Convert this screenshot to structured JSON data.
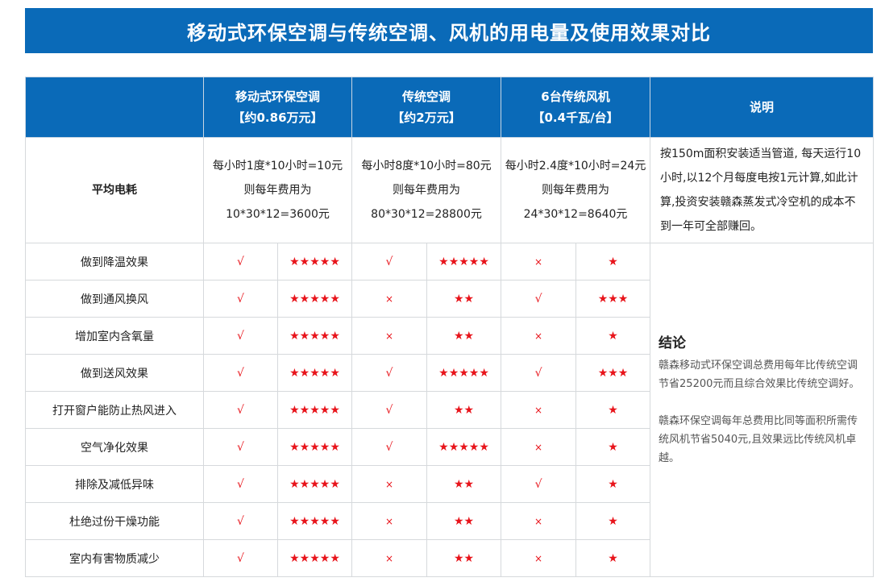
{
  "title": "移动式环保空调与传统空调、风机的用电量及使用效果对比",
  "colors": {
    "header_blue": "#0a6ab8",
    "mark_red": "#e8141b"
  },
  "headers": [
    {
      "name": "移动式环保空调",
      "price": "【约0.86万元】"
    },
    {
      "name": "传统空调",
      "price": "【约2万元】"
    },
    {
      "name": "6台传统风机",
      "price": "【0.4千瓦/台】"
    }
  ],
  "notes_header": "说明",
  "power": {
    "label": "平均电耗",
    "cells": [
      [
        "每小时1度*10小时=10元",
        "则每年费用为",
        "10*30*12=3600元"
      ],
      [
        "每小时8度*10小时=80元",
        "则每年费用为",
        "80*30*12=28800元"
      ],
      [
        "每小时2.4度*10小时=24元",
        "则每年费用为",
        "24*30*12=8640元"
      ]
    ],
    "note": "按150m面积安装适当管道, 每天运行10小时,以12个月每度电按1元计算,如此计算,投资安装赣森蒸发式冷空机的成本不到一年可全部赚回。"
  },
  "rows": [
    {
      "label": "做到降温效果",
      "marks": [
        "√",
        "★★★★★",
        "√",
        "★★★★★",
        "×",
        "★"
      ]
    },
    {
      "label": "做到通风换风",
      "marks": [
        "√",
        "★★★★★",
        "×",
        "★★",
        "√",
        "★★★"
      ]
    },
    {
      "label": "增加室内含氧量",
      "marks": [
        "√",
        "★★★★★",
        "×",
        "★★",
        "×",
        "★"
      ]
    },
    {
      "label": "做到送风效果",
      "marks": [
        "√",
        "★★★★★",
        "√",
        "★★★★★",
        "√",
        "★★★"
      ]
    },
    {
      "label": "打开窗户能防止热风进入",
      "marks": [
        "√",
        "★★★★★",
        "√",
        "★★",
        "×",
        "★"
      ]
    },
    {
      "label": "空气净化效果",
      "marks": [
        "√",
        "★★★★★",
        "√",
        "★★★★★",
        "×",
        "★"
      ]
    },
    {
      "label": "排除及减低异味",
      "marks": [
        "√",
        "★★★★★",
        "×",
        "★★",
        "√",
        "★"
      ]
    },
    {
      "label": "杜绝过份干燥功能",
      "marks": [
        "√",
        "★★★★★",
        "×",
        "★★",
        "×",
        "★"
      ]
    },
    {
      "label": "室内有害物质减少",
      "marks": [
        "√",
        "★★★★★",
        "×",
        "★★",
        "×",
        "★"
      ]
    }
  ],
  "conclusion": {
    "heading": "结论",
    "paragraphs": [
      "赣森移动式环保空调总费用每年比传统空调节省25200元而且综合效果比传统空调好。",
      "赣森环保空调每年总费用比同等面积所需传统风机节省5040元,且效果远比传统风机卓越。"
    ]
  }
}
